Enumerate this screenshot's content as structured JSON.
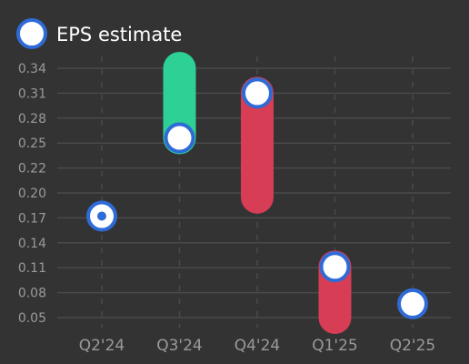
{
  "colors": {
    "background": "#333333",
    "grid": "#4a4a4a",
    "marker_fill": "#ffffff",
    "marker_stroke": "#2f6bd6",
    "beat": "#2dd196",
    "miss": "#d73d55",
    "axis_text": "#9a9a9a",
    "legend_text": "#ffffff"
  },
  "chart_data": {
    "type": "scatter",
    "legend": {
      "label": "EPS estimate",
      "position": "top-left"
    },
    "categories": [
      "Q2'24",
      "Q3'24",
      "Q4'24",
      "Q1'25",
      "Q2'25"
    ],
    "y_ticks": [
      "0.05",
      "0.08",
      "0.11",
      "0.14",
      "0.17",
      "0.20",
      "0.22",
      "0.25",
      "0.28",
      "0.31",
      "0.34"
    ],
    "ylim": [
      0.05,
      0.34
    ],
    "grid": true,
    "series": [
      {
        "name": "EPS estimate",
        "values": [
          0.168,
          0.259,
          0.311,
          0.109,
          0.066
        ]
      }
    ],
    "actual": [
      0.168,
      0.34,
      0.19,
      0.05,
      null
    ]
  }
}
